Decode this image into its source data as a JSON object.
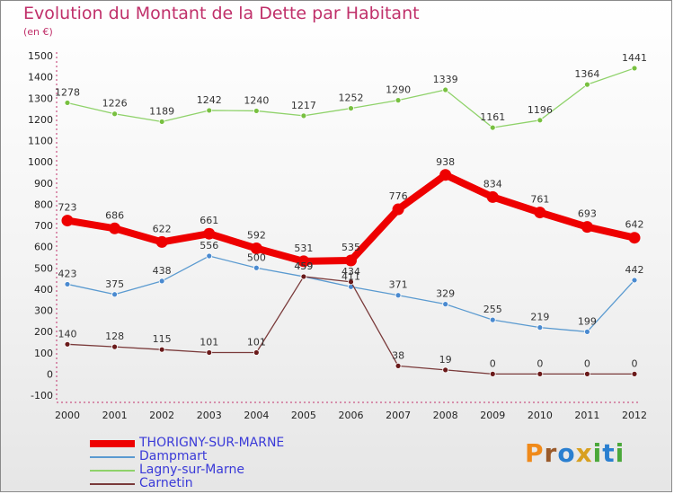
{
  "title": "Evolution du Montant de la Dette par Habitant",
  "unit_label": "(en €)",
  "logo": {
    "text": "Proxiti",
    "letters": [
      {
        "ch": "P",
        "color": "#f08a1a"
      },
      {
        "ch": "r",
        "color": "#9a5a2a"
      },
      {
        "ch": "o",
        "color": "#2a7fd0"
      },
      {
        "ch": "x",
        "color": "#d8a020"
      },
      {
        "ch": "i",
        "color": "#4aa83a"
      },
      {
        "ch": "t",
        "color": "#2a7fd0"
      },
      {
        "ch": "i",
        "color": "#4aa83a"
      }
    ]
  },
  "chart_data": {
    "type": "line",
    "x": [
      "2000",
      "2001",
      "2002",
      "2003",
      "2004",
      "2005",
      "2006",
      "2007",
      "2008",
      "2009",
      "2010",
      "2011",
      "2012"
    ],
    "ylim": [
      -100,
      1500
    ],
    "yticks": [
      -100,
      0,
      100,
      200,
      300,
      400,
      500,
      600,
      700,
      800,
      900,
      1000,
      1100,
      1200,
      1300,
      1400,
      1500
    ],
    "grid": false,
    "legend_position": "bottom-left",
    "series": [
      {
        "name": "THORIGNY-SUR-MARNE",
        "color": "#ee0000",
        "marker": "#ee0000",
        "thick": true,
        "values": [
          723,
          686,
          622,
          661,
          592,
          531,
          535,
          776,
          938,
          834,
          761,
          693,
          642
        ]
      },
      {
        "name": "Dampmart",
        "color": "#5a9ad0",
        "marker": "#4a8ad0",
        "thick": false,
        "values": [
          423,
          375,
          438,
          556,
          500,
          459,
          411,
          371,
          329,
          255,
          219,
          199,
          442
        ]
      },
      {
        "name": "Lagny-sur-Marne",
        "color": "#8fd26a",
        "marker": "#78c040",
        "thick": false,
        "values": [
          1278,
          1226,
          1189,
          1242,
          1240,
          1217,
          1252,
          1290,
          1339,
          1161,
          1196,
          1364,
          1441
        ]
      },
      {
        "name": "Carnetin",
        "color": "#7a3a3a",
        "marker": "#6a1a1a",
        "thick": false,
        "values": [
          140,
          128,
          115,
          101,
          101,
          459,
          434,
          38,
          19,
          0,
          0,
          0,
          0
        ]
      }
    ]
  }
}
